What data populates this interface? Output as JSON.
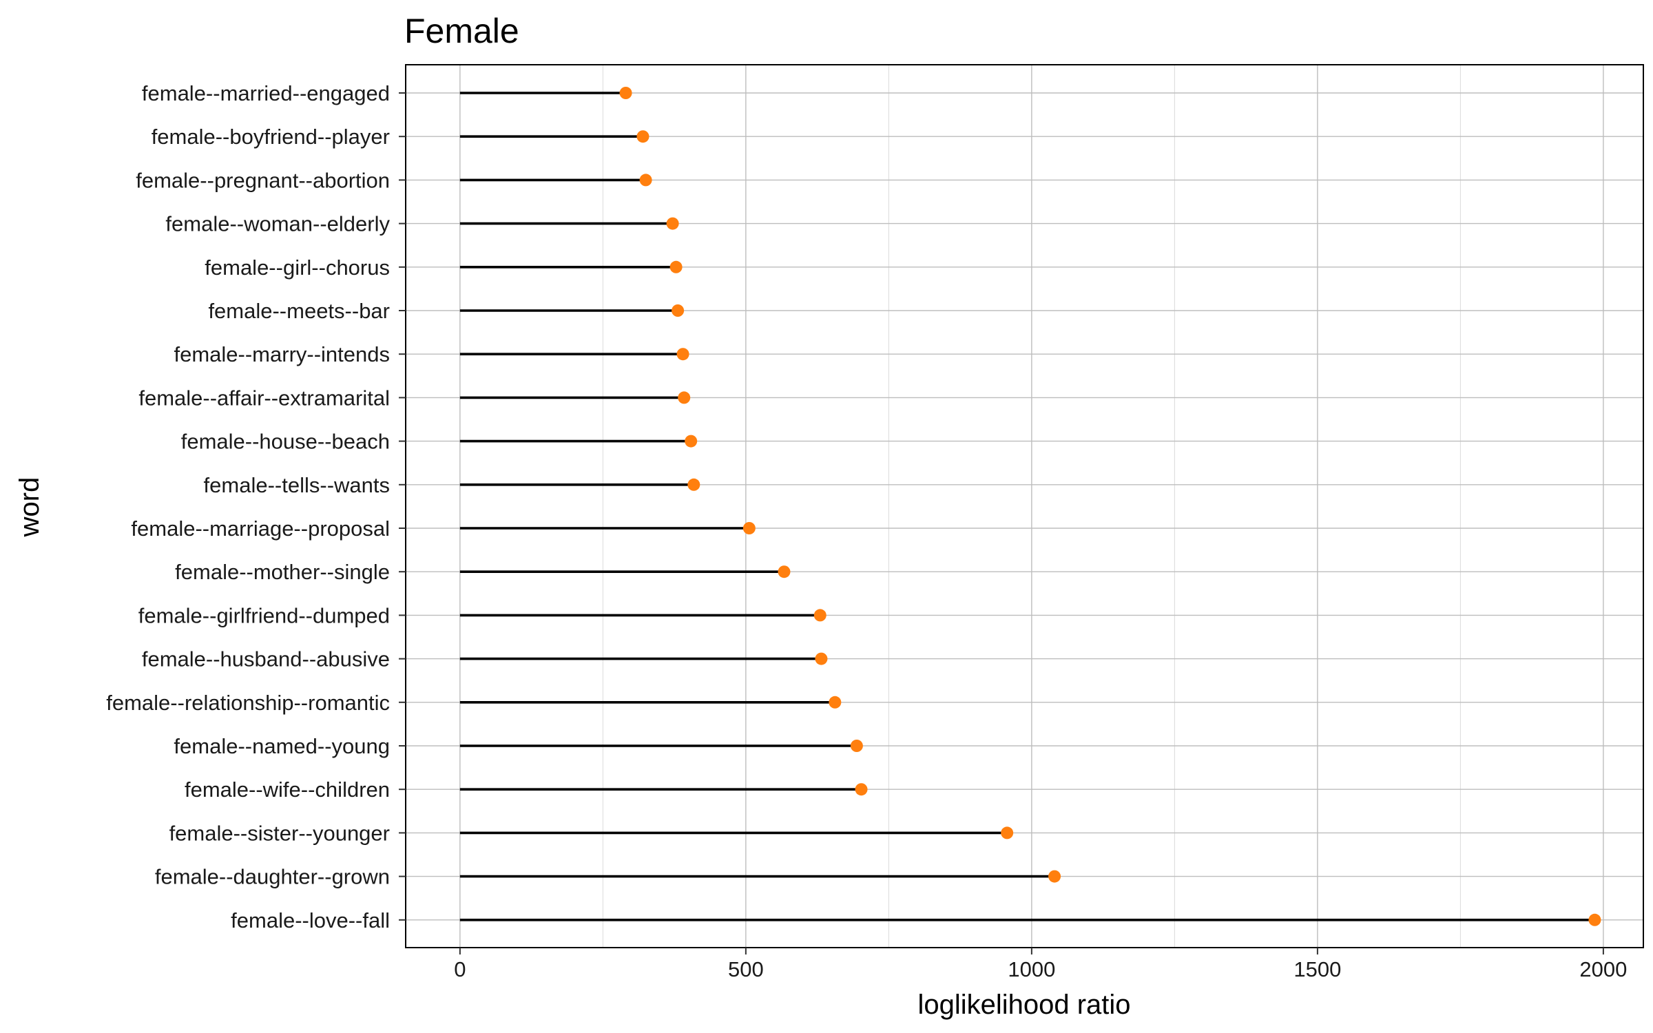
{
  "chart_data": {
    "type": "lollipop",
    "title": "Female",
    "xlabel": "loglikelihood ratio",
    "ylabel": "word",
    "xlim": [
      -95,
      2070
    ],
    "x_ticks": [
      0,
      500,
      1000,
      1500,
      2000
    ],
    "x_minor_ticks": [
      250,
      750,
      1250,
      1750
    ],
    "grid": true,
    "colors": {
      "segment": "#000000",
      "point": "#ff7f0e",
      "grid": "#bdbdbd",
      "panel_border": "#000000"
    },
    "categories": [
      "female--married--engaged",
      "female--boyfriend--player",
      "female--pregnant--abortion",
      "female--woman--elderly",
      "female--girl--chorus",
      "female--meets--bar",
      "female--marry--intends",
      "female--affair--extramarital",
      "female--house--beach",
      "female--tells--wants",
      "female--marriage--proposal",
      "female--mother--single",
      "female--girlfriend--dumped",
      "female--husband--abusive",
      "female--relationship--romantic",
      "female--named--young",
      "female--wife--children",
      "female--sister--younger",
      "female--daughter--grown",
      "female--love--fall"
    ],
    "values": [
      290,
      320,
      325,
      372,
      378,
      381,
      390,
      392,
      404,
      409,
      506,
      567,
      630,
      632,
      656,
      694,
      702,
      957,
      1040,
      1985
    ]
  }
}
